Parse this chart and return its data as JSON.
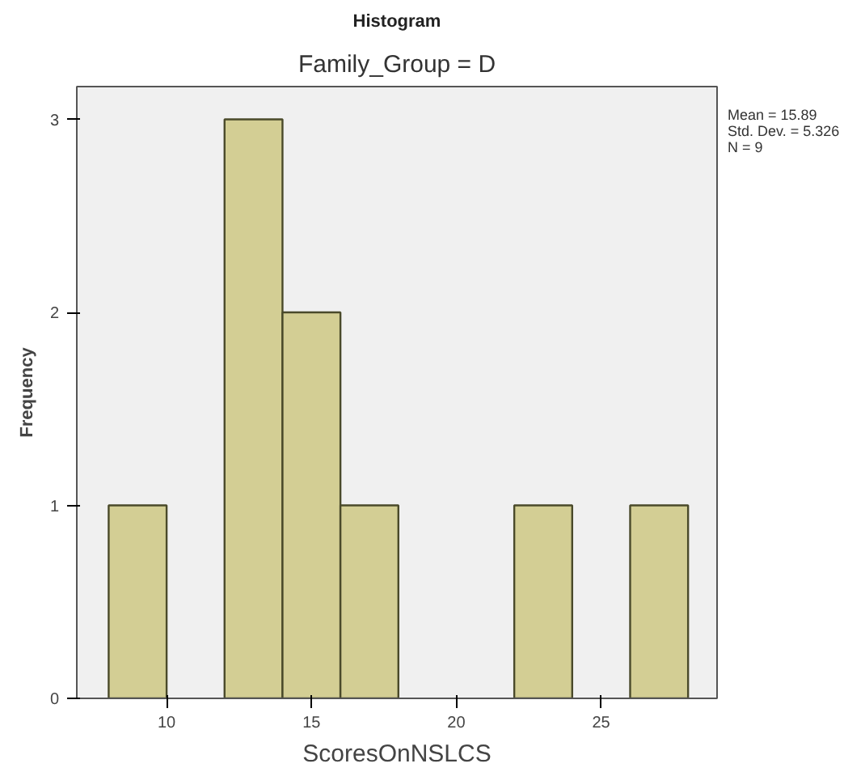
{
  "chart_data": {
    "type": "histogram",
    "title": "Histogram",
    "subtitle": "Family_Group = D",
    "xlabel": "ScoresOnNSLCS",
    "ylabel": "Frequency",
    "bins": [
      8,
      10,
      12,
      14,
      16,
      18,
      20,
      22,
      24,
      26,
      28
    ],
    "values": [
      1,
      0,
      3,
      2,
      1,
      0,
      0,
      1,
      0,
      1
    ],
    "color": "#d3ce94",
    "xlim": [
      6.9,
      29.0
    ],
    "ylim": [
      0,
      3.17
    ],
    "xticks": [
      10,
      15,
      20,
      25
    ],
    "yticks": [
      0,
      1,
      2,
      3
    ],
    "grid": false,
    "annotations": [
      "Mean = 15.89",
      "Std. Dev. = 5.326",
      "N = 9"
    ]
  }
}
